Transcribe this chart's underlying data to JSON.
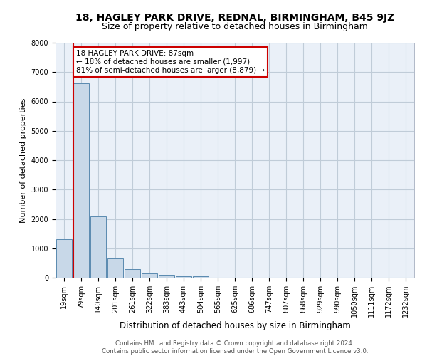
{
  "title": "18, HAGLEY PARK DRIVE, REDNAL, BIRMINGHAM, B45 9JZ",
  "subtitle": "Size of property relative to detached houses in Birmingham",
  "xlabel": "Distribution of detached houses by size in Birmingham",
  "ylabel": "Number of detached properties",
  "footer_line1": "Contains HM Land Registry data © Crown copyright and database right 2024.",
  "footer_line2": "Contains public sector information licensed under the Open Government Licence v3.0.",
  "bar_labels": [
    "19sqm",
    "79sqm",
    "140sqm",
    "201sqm",
    "261sqm",
    "322sqm",
    "383sqm",
    "443sqm",
    "504sqm",
    "565sqm",
    "625sqm",
    "686sqm",
    "747sqm",
    "807sqm",
    "868sqm",
    "929sqm",
    "990sqm",
    "1050sqm",
    "1111sqm",
    "1172sqm",
    "1232sqm"
  ],
  "bar_values": [
    1320,
    6620,
    2090,
    650,
    290,
    150,
    100,
    60,
    60,
    0,
    0,
    0,
    0,
    0,
    0,
    0,
    0,
    0,
    0,
    0,
    0
  ],
  "bar_color": "#c8d8e8",
  "bar_edge_color": "#5a8ab0",
  "property_line_color": "#cc0000",
  "annotation_line1": "18 HAGLEY PARK DRIVE: 87sqm",
  "annotation_line2": "← 18% of detached houses are smaller (1,997)",
  "annotation_line3": "81% of semi-detached houses are larger (8,879) →",
  "annotation_box_color": "#cc0000",
  "annotation_fontsize": 7.5,
  "ylim": [
    0,
    8000
  ],
  "yticks": [
    0,
    1000,
    2000,
    3000,
    4000,
    5000,
    6000,
    7000,
    8000
  ],
  "grid_color": "#c0ccd8",
  "background_color": "#eaf0f8",
  "title_fontsize": 10,
  "subtitle_fontsize": 9,
  "xlabel_fontsize": 8.5,
  "ylabel_fontsize": 8,
  "tick_fontsize": 7
}
